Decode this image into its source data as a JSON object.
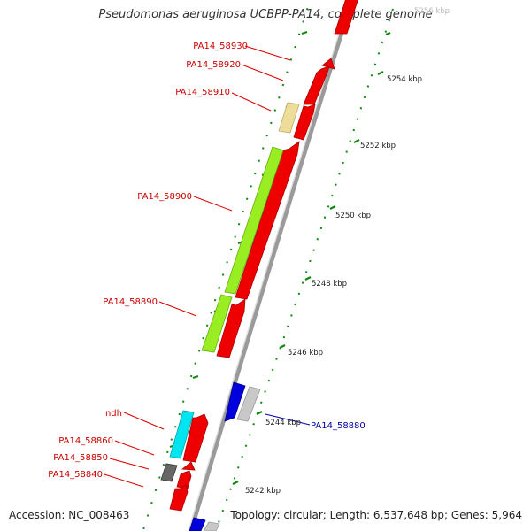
{
  "title": "Pseudomonas aeruginosa UCBPP-PA14, complete genome",
  "accession": "Accession: NC_008463",
  "summary": "Topology: circular; Length: 6,537,648 bp; Genes: 5,964",
  "scale_labels": [
    "5256 kbp",
    "5254 kbp",
    "5252 kbp",
    "5250 kbp",
    "5248 kbp",
    "5246 kbp",
    "5244 kbp",
    "5242 kbp"
  ],
  "gene_labels": [
    "PA14_58930",
    "PA14_58920",
    "PA14_58910",
    "PA14_58900",
    "PA14_58890",
    "ndh",
    "PA14_58860",
    "PA14_58850",
    "PA14_58840",
    "PA14_58880"
  ],
  "colors": {
    "forward_gene": "#ee0000",
    "green_gene": "#99ee22",
    "tan_gene": "#eedd99",
    "cyan_gene": "#00e5f0",
    "blue_gene": "#0000dd",
    "gray_gene": "#c8c8c8",
    "dark_gene": "#666666",
    "backbone": "#888888",
    "ticks": "#118811",
    "label_red": "#cc0000",
    "label_blue": "#0000aa"
  }
}
